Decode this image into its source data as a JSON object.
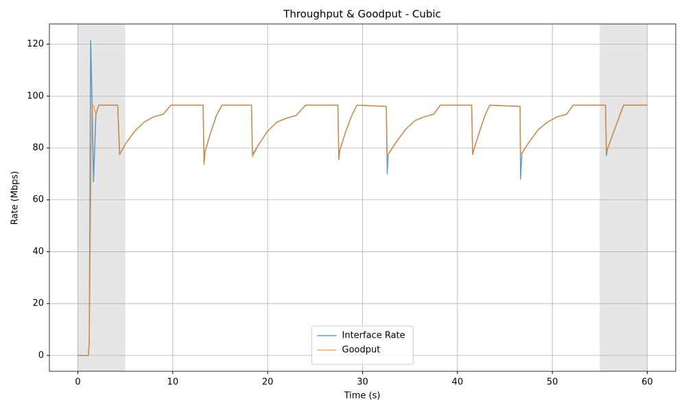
{
  "chart_data": {
    "type": "line",
    "title": "Throughput & Goodput - Cubic",
    "xlabel": "Time (s)",
    "ylabel": "Rate (Mbps)",
    "x": [
      0,
      1.1,
      1.2,
      1.35,
      1.5,
      1.65,
      1.9,
      2.2,
      4.2,
      4.4,
      5,
      6,
      7,
      8,
      9,
      9.8,
      13.2,
      13.3,
      13.4,
      14,
      14.6,
      15.2,
      18.3,
      18.4,
      19,
      20,
      21,
      22,
      23,
      24,
      27.4,
      27.5,
      27.6,
      28.2,
      28.8,
      29.4,
      32.5,
      32.6,
      32.7,
      33.5,
      34.5,
      35.5,
      36.5,
      37.5,
      38.2,
      41.5,
      41.6,
      41.7,
      42.3,
      42.9,
      43.4,
      46.6,
      46.65,
      46.8,
      47.5,
      48.5,
      49.5,
      50.5,
      51.5,
      52.2,
      55.6,
      55.7,
      55.8,
      56.4,
      57,
      57.5,
      60
    ],
    "series": [
      {
        "name": "Interface Rate",
        "color": "#1f77b4",
        "values": [
          0,
          0,
          5,
          121.5,
          97,
          67,
          93,
          96.5,
          96.5,
          77.5,
          81.5,
          86.5,
          90,
          92,
          93,
          96.5,
          96.5,
          74,
          78.5,
          86,
          92.5,
          96.5,
          96.5,
          77.5,
          81,
          86.5,
          90,
          91.5,
          92.5,
          96.5,
          96.5,
          75.5,
          79,
          86,
          92,
          96.5,
          96,
          70,
          77.5,
          82,
          87,
          90.5,
          92,
          93,
          96.5,
          96.5,
          77.5,
          79,
          86,
          92.5,
          96.5,
          96,
          68,
          78,
          82,
          87,
          90,
          92,
          93,
          96.5,
          96.5,
          77,
          79.5,
          85.5,
          91.5,
          96.5,
          96.5
        ]
      },
      {
        "name": "Goodput",
        "color": "#ff7f0e",
        "values": [
          0,
          0,
          5,
          60,
          97,
          96,
          93,
          96.5,
          96.5,
          77.5,
          81.5,
          86.5,
          90,
          92,
          93,
          96.5,
          96.5,
          73.5,
          78.5,
          86,
          92.5,
          96.5,
          96.5,
          76.5,
          81,
          86.5,
          90,
          91.5,
          92.5,
          96.5,
          96.5,
          76,
          79,
          86,
          92,
          96.5,
          96,
          77,
          77.5,
          82,
          87,
          90.5,
          92,
          93,
          96.5,
          96.5,
          77.5,
          79,
          86,
          92.5,
          96.5,
          96,
          77.5,
          78,
          82,
          87,
          90,
          92,
          93,
          96.5,
          96.5,
          78.5,
          79.5,
          85.5,
          91.5,
          96.5,
          96.5
        ]
      }
    ],
    "shaded_regions": [
      [
        0,
        5
      ],
      [
        55,
        60
      ]
    ],
    "xlim": [
      -3,
      63
    ],
    "xticks": [
      0,
      10,
      20,
      30,
      40,
      50,
      60
    ],
    "ylim": [
      -6.1,
      127.8
    ],
    "yticks": [
      0,
      20,
      40,
      60,
      80,
      100,
      120
    ],
    "grid": true,
    "legend": "lower center"
  }
}
